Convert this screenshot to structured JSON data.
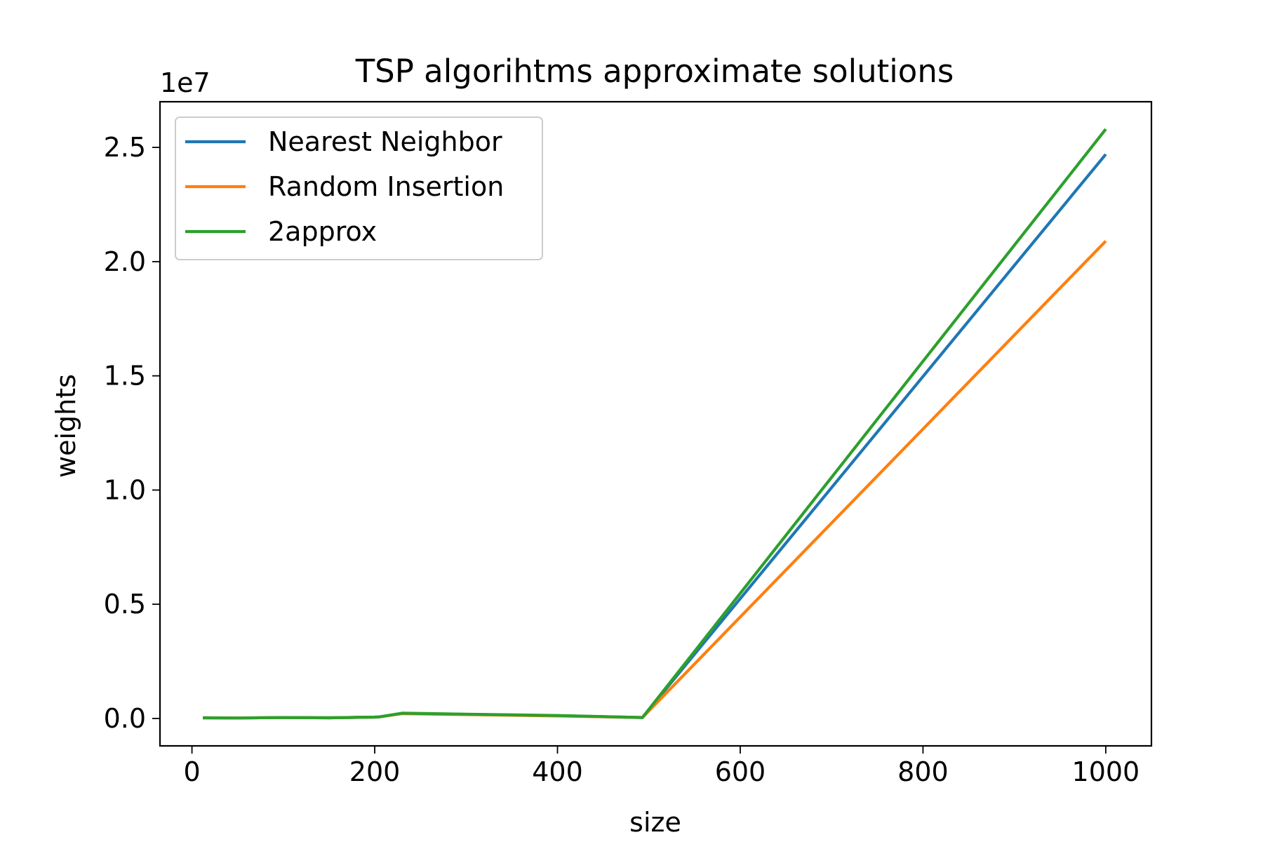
{
  "chart_data": {
    "type": "line",
    "title": "TSP algorihtms approximate solutions",
    "xlabel": "size",
    "ylabel": "weights",
    "y_offset_label": "1e7",
    "xlim": [
      -35,
      1050
    ],
    "ylim": [
      -0.12,
      2.7
    ],
    "y_scale_note": "values in units of 1e7",
    "xticks": [
      0,
      200,
      400,
      600,
      800,
      1000
    ],
    "xtick_labels": [
      "0",
      "200",
      "400",
      "600",
      "800",
      "1000"
    ],
    "yticks": [
      0.0,
      0.5,
      1.0,
      1.5,
      2.0,
      2.5
    ],
    "ytick_labels": [
      "0.0",
      "0.5",
      "1.0",
      "1.5",
      "2.0",
      "2.5"
    ],
    "grid": false,
    "legend_position": "upper-left",
    "x": [
      12,
      50,
      100,
      150,
      170,
      200,
      205,
      230,
      300,
      400,
      493,
      1000
    ],
    "series": [
      {
        "name": "Nearest Neighbor",
        "color": "#1f77b4",
        "values": [
          0.003,
          0.002,
          0.004,
          0.003,
          0.004,
          0.006,
          0.007,
          0.022,
          0.018,
          0.012,
          0.004,
          2.47
        ]
      },
      {
        "name": "Random Insertion",
        "color": "#ff7f0e",
        "values": [
          0.003,
          0.002,
          0.004,
          0.003,
          0.004,
          0.006,
          0.007,
          0.021,
          0.017,
          0.011,
          0.004,
          2.09
        ]
      },
      {
        "name": "2approx",
        "color": "#2ca02c",
        "values": [
          0.003,
          0.002,
          0.004,
          0.003,
          0.004,
          0.006,
          0.007,
          0.023,
          0.019,
          0.013,
          0.004,
          2.58
        ]
      }
    ]
  }
}
